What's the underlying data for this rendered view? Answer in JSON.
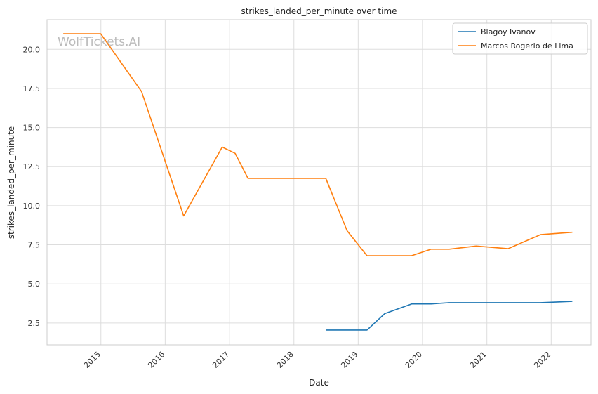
{
  "watermark": "WolfTickets.AI",
  "chart_data": {
    "type": "line",
    "title": "strikes_landed_per_minute over time",
    "xlabel": "Date",
    "ylabel": "strikes_landed_per_minute",
    "x_ticks": [
      "2015",
      "2016",
      "2017",
      "2018",
      "2019",
      "2020",
      "2021",
      "2022"
    ],
    "y_ticks": [
      "2.5",
      "5.0",
      "7.5",
      "10.0",
      "12.5",
      "15.0",
      "17.5",
      "20.0"
    ],
    "xlim": [
      "2014-03-01",
      "2022-08-15"
    ],
    "ylim": [
      1.1,
      21.9
    ],
    "grid": true,
    "legend_position": "top-right",
    "series": [
      {
        "name": "Blagoy Ivanov",
        "color": "#1f77b4",
        "points": [
          [
            "2018-07-01",
            2.05
          ],
          [
            "2019-02-20",
            2.05
          ],
          [
            "2019-06-01",
            3.1
          ],
          [
            "2019-11-01",
            3.72
          ],
          [
            "2020-02-20",
            3.72
          ],
          [
            "2020-06-01",
            3.8
          ],
          [
            "2021-11-01",
            3.8
          ],
          [
            "2022-05-01",
            3.88
          ]
        ]
      },
      {
        "name": "Marcos Rogerio de Lima",
        "color": "#ff7f0e",
        "points": [
          [
            "2014-06-01",
            21.0
          ],
          [
            "2014-12-31",
            21.0
          ],
          [
            "2015-08-20",
            17.3
          ],
          [
            "2016-04-15",
            9.35
          ],
          [
            "2016-11-20",
            13.75
          ],
          [
            "2017-02-01",
            13.35
          ],
          [
            "2017-04-15",
            11.75
          ],
          [
            "2018-07-01",
            11.75
          ],
          [
            "2018-10-30",
            8.4
          ],
          [
            "2019-02-20",
            6.8
          ],
          [
            "2019-10-30",
            6.8
          ],
          [
            "2020-02-20",
            7.22
          ],
          [
            "2020-06-01",
            7.22
          ],
          [
            "2020-11-01",
            7.42
          ],
          [
            "2021-05-01",
            7.25
          ],
          [
            "2021-11-01",
            8.15
          ],
          [
            "2022-05-01",
            8.3
          ]
        ]
      }
    ]
  }
}
